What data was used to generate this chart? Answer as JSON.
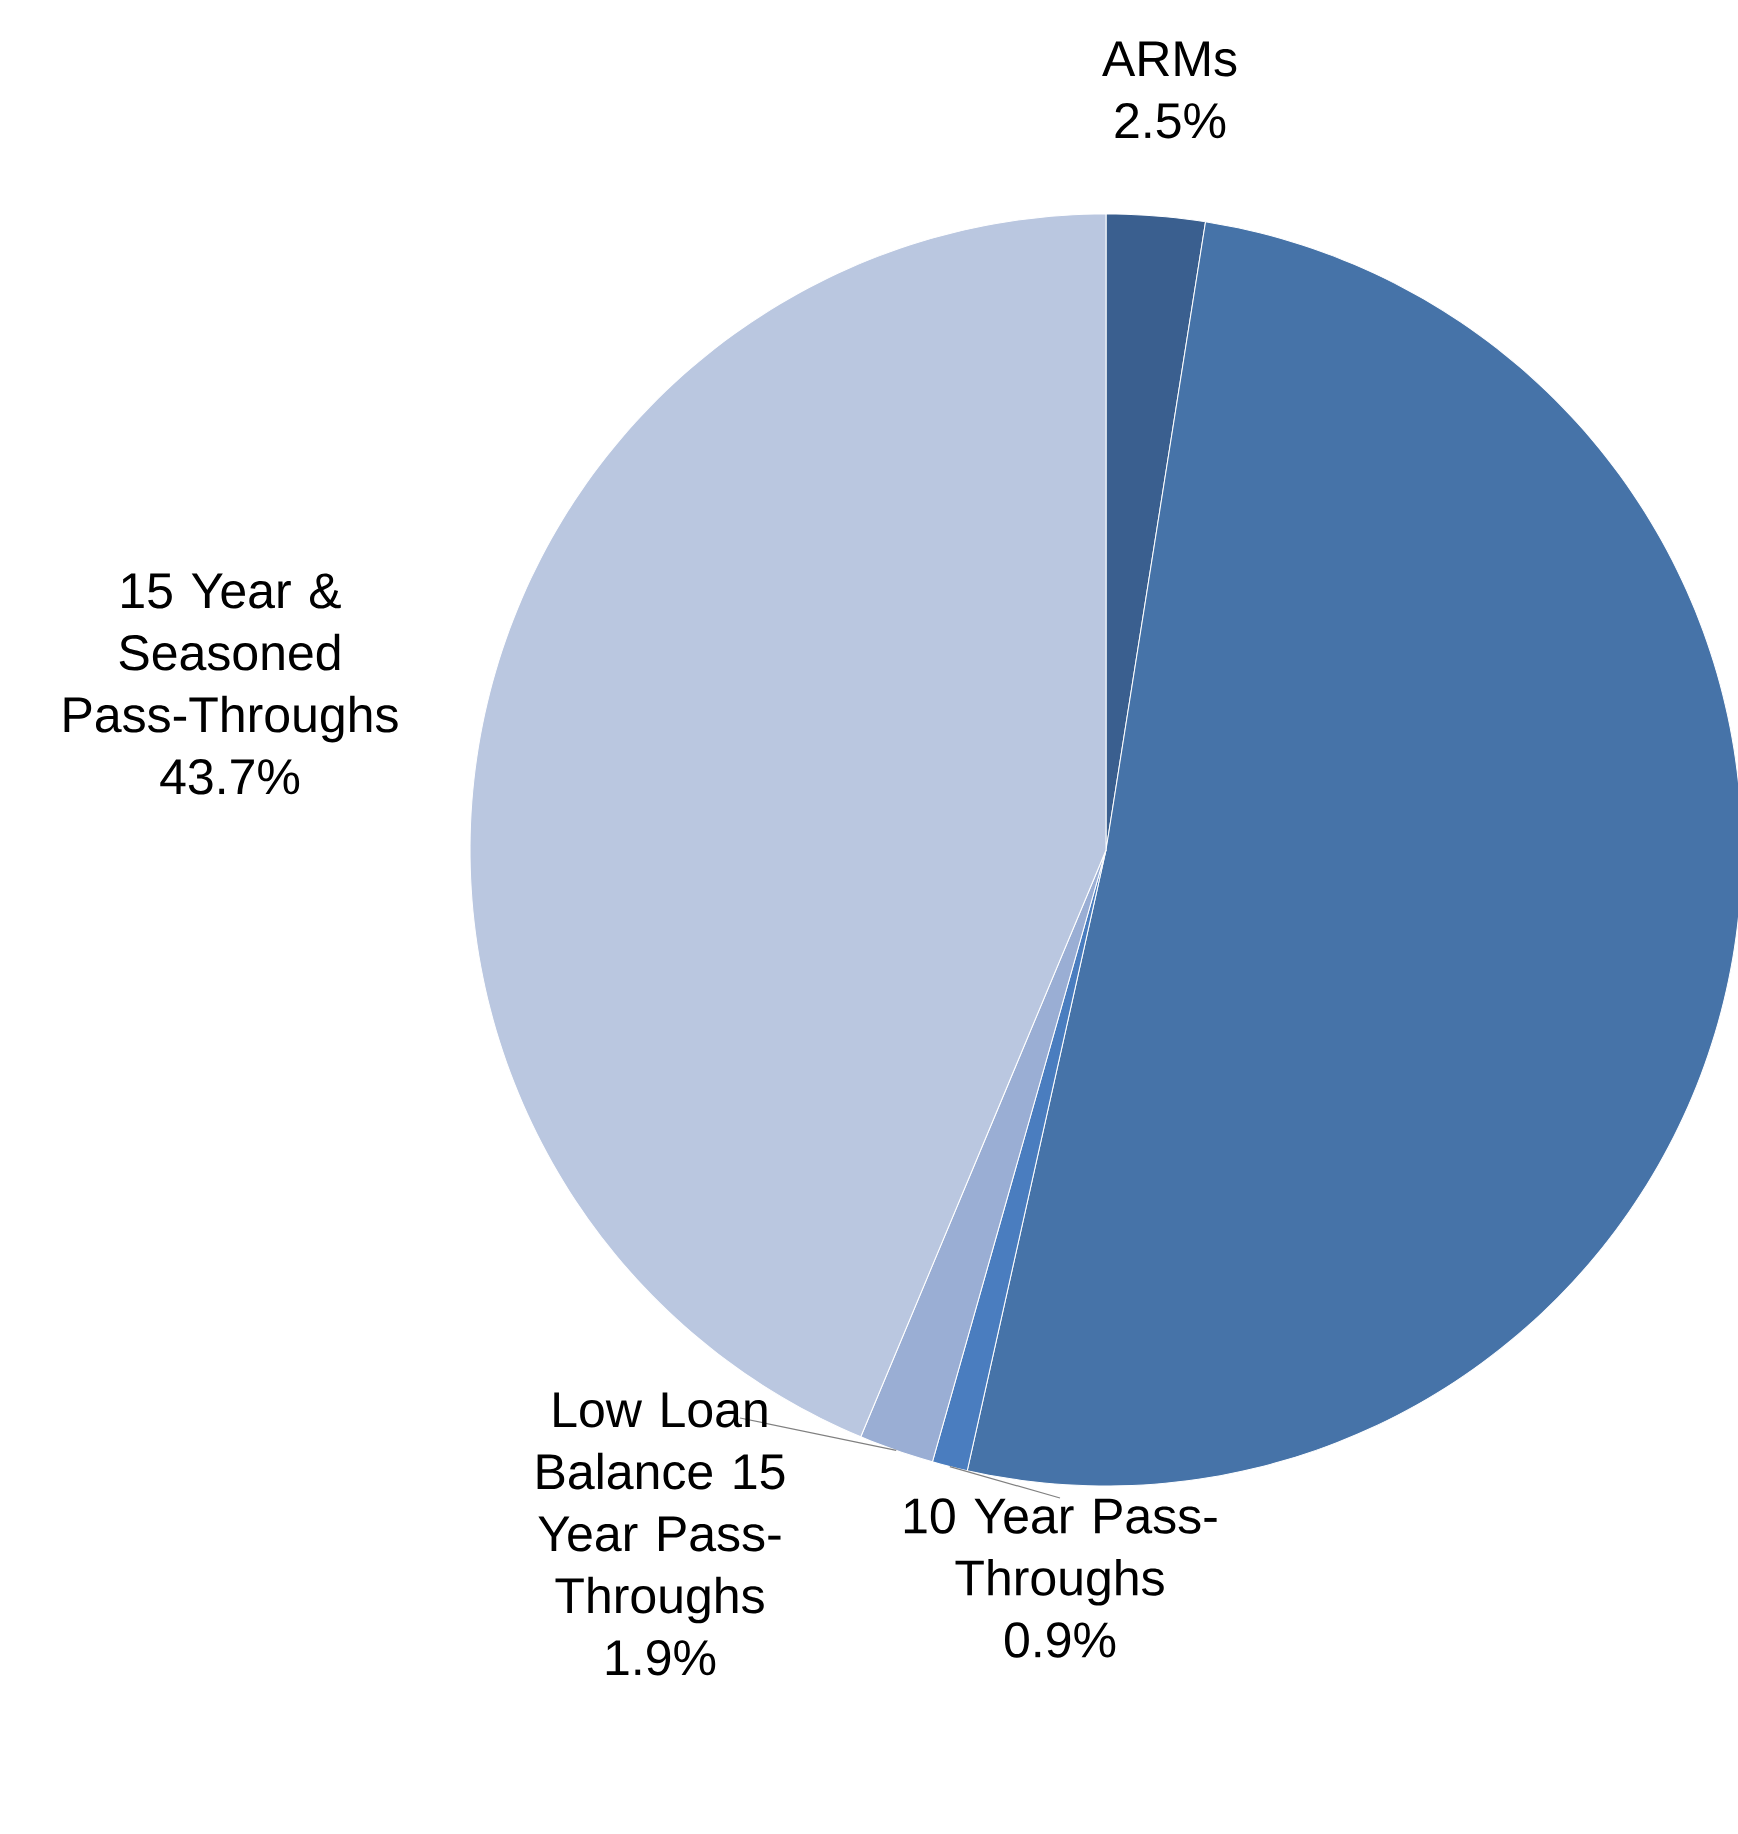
{
  "chart_data": {
    "type": "pie",
    "categories": [
      "ARMs",
      null,
      "10 Year Pass-Throughs",
      "Low Loan Balance 15 Year Pass-Throughs",
      "15 Year & Seasoned Pass-Throughs"
    ],
    "values": [
      2.5,
      51.0,
      0.9,
      1.9,
      43.7
    ],
    "value_labels": [
      "2.5%",
      null,
      "0.9%",
      "1.9%",
      "43.7%"
    ],
    "colors": [
      "#3a5f8f",
      "#4673a8",
      "#4a7dbf",
      "#9aaed4",
      "#bac7e0"
    ]
  }
}
